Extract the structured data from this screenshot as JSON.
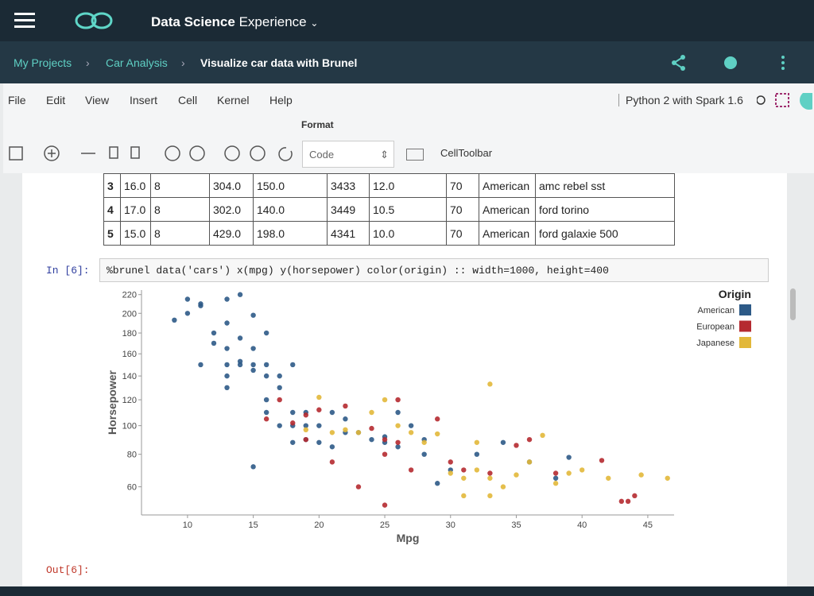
{
  "header": {
    "brand_bold": "Data Science",
    "brand_light": "Experience"
  },
  "breadcrumb": [
    "My Projects",
    "Car Analysis",
    "Visualize car data with Brunel"
  ],
  "menu": [
    "File",
    "Edit",
    "View",
    "Insert",
    "Cell",
    "Kernel",
    "Help"
  ],
  "menu_format": "Format",
  "kernel": "Python 2 with Spark 1.6",
  "toolbar": {
    "cell_type": "Code",
    "cell_toolbar": "CellToolbar"
  },
  "table": {
    "rows": [
      [
        "3",
        "16.0",
        "8",
        "304.0",
        "150.0",
        "3433",
        "12.0",
        "70",
        "American",
        "amc rebel sst"
      ],
      [
        "4",
        "17.0",
        "8",
        "302.0",
        "140.0",
        "3449",
        "10.5",
        "70",
        "American",
        "ford torino"
      ],
      [
        "5",
        "15.0",
        "8",
        "429.0",
        "198.0",
        "4341",
        "10.0",
        "70",
        "American",
        "ford galaxie 500"
      ]
    ]
  },
  "cell": {
    "prompt": "In [6]:",
    "code": "%brunel data('cars') x(mpg) y(horsepower) color(origin) :: width=1000, height=400",
    "out_prompt": "Out[6]:"
  },
  "chart_data": {
    "type": "scatter",
    "x_label": "Mpg",
    "y_label": "Horsepower",
    "legend_title": "Origin",
    "legend": "top right",
    "yscale": "sqrt",
    "xlim": [
      6.5,
      47
    ],
    "ylim": [
      45,
      225
    ],
    "xticks": [
      10,
      15,
      20,
      25,
      30,
      35,
      40,
      45
    ],
    "yticks": [
      60,
      80,
      100,
      120,
      140,
      160,
      180,
      200,
      220
    ],
    "series": [
      {
        "name": "American",
        "color": "#2d5a87",
        "x": [
          9,
          10,
          10,
          11,
          11,
          11,
          12,
          12,
          13,
          13,
          13,
          13,
          13,
          13,
          14,
          14,
          14,
          14,
          15,
          15,
          15,
          15,
          15,
          16,
          16,
          16,
          16,
          16,
          17,
          17,
          17,
          18,
          18,
          18,
          18,
          19,
          19,
          19,
          20,
          20,
          21,
          21,
          22,
          22,
          23,
          24,
          25,
          25,
          26,
          26,
          27,
          28,
          28,
          29,
          30,
          32,
          34,
          36,
          38,
          39
        ],
        "values": [
          193,
          215,
          200,
          210,
          208,
          150,
          180,
          170,
          215,
          190,
          165,
          150,
          140,
          130,
          220,
          175,
          150,
          153,
          198,
          165,
          150,
          145,
          72,
          180,
          150,
          140,
          120,
          110,
          140,
          130,
          100,
          150,
          110,
          100,
          88,
          100,
          90,
          110,
          100,
          88,
          110,
          85,
          95,
          105,
          95,
          90,
          92,
          88,
          110,
          85,
          100,
          90,
          80,
          62,
          70,
          80,
          88,
          75,
          65,
          78
        ]
      },
      {
        "name": "European",
        "color": "#b52a30",
        "x": [
          16,
          17,
          18,
          19,
          19,
          20,
          21,
          22,
          23,
          24,
          25,
          25,
          26,
          27,
          29,
          30,
          31,
          33,
          35,
          36,
          38,
          41.5,
          43,
          43.5,
          44,
          25,
          26
        ],
        "values": [
          105,
          120,
          102,
          108,
          90,
          112,
          75,
          115,
          60,
          98,
          90,
          80,
          88,
          70,
          105,
          75,
          70,
          68,
          86,
          90,
          68,
          76,
          52,
          52,
          55,
          50,
          120
        ]
      },
      {
        "name": "Japanese",
        "color": "#e2b83a",
        "x": [
          19,
          20,
          21,
          22,
          23,
          24,
          25,
          26,
          27,
          28,
          29,
          30,
          31,
          32,
          32,
          33,
          33,
          34,
          35,
          36,
          37,
          38,
          39,
          40,
          42,
          44.5,
          46.5,
          31,
          33
        ],
        "values": [
          97,
          122,
          95,
          97,
          95,
          110,
          120,
          100,
          95,
          88,
          94,
          68,
          65,
          70,
          88,
          133,
          65,
          60,
          67,
          75,
          93,
          62,
          68,
          70,
          65,
          67,
          65,
          55,
          55
        ]
      }
    ]
  }
}
